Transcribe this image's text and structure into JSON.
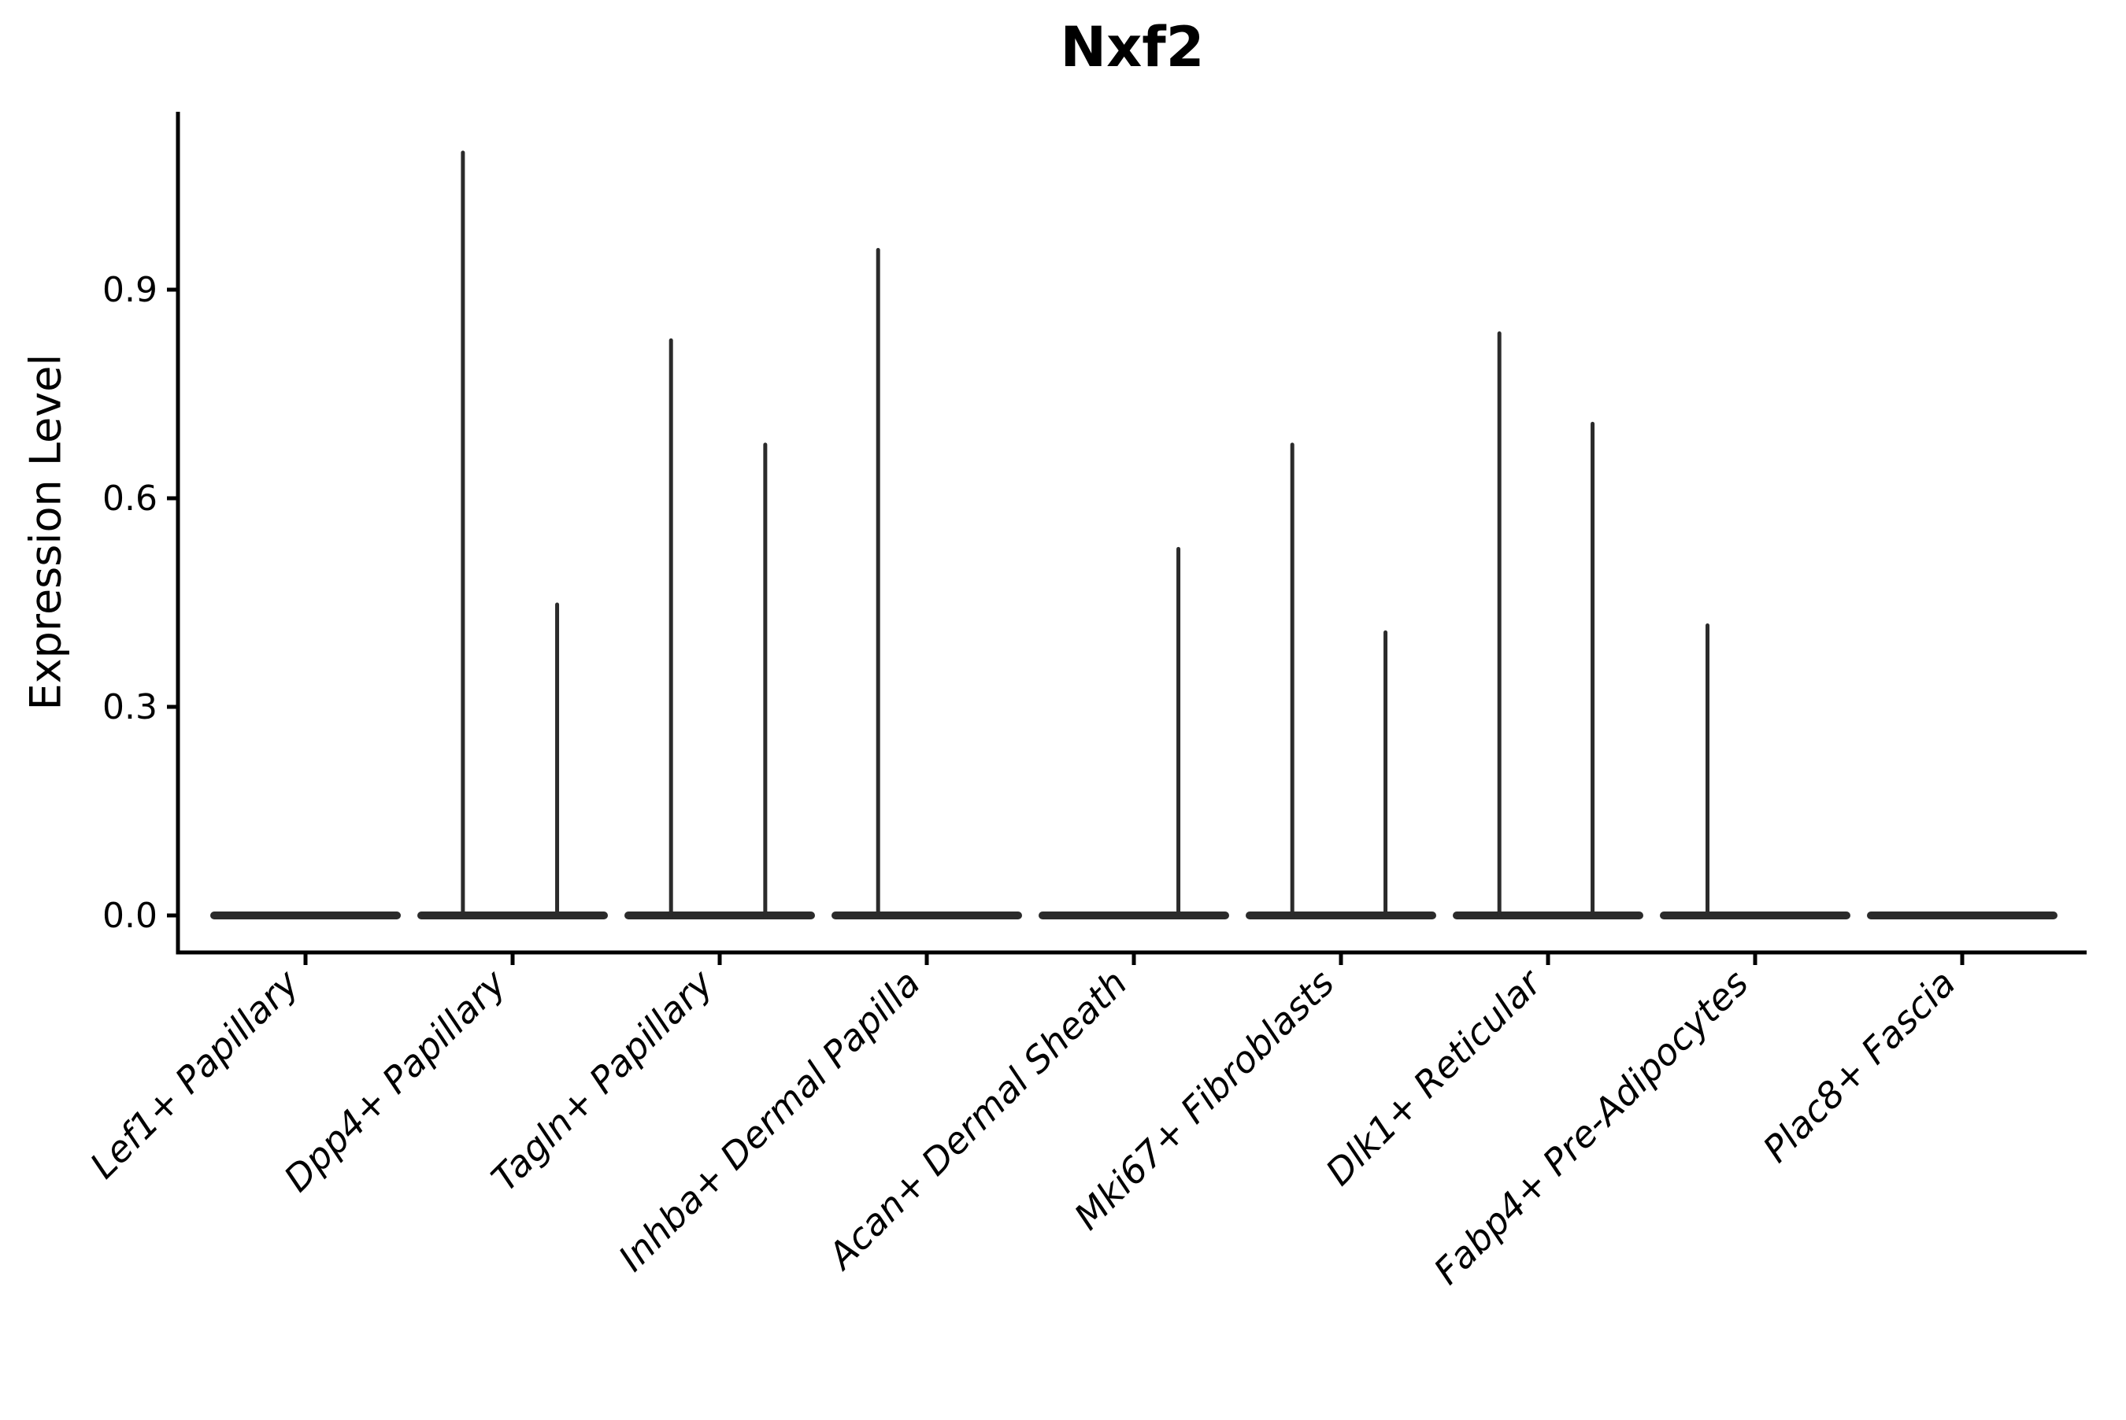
{
  "title": "Nxf2",
  "axes": {
    "y_label": "Expression Level"
  },
  "chart_data": {
    "type": "violin",
    "title": "Nxf2",
    "xlabel": "",
    "ylabel": "Expression Level",
    "ylim": [
      -0.053,
      1.156
    ],
    "y_ticks": [
      0,
      0.3,
      0.6,
      0.9
    ],
    "y_tick_labels": [
      "0.0",
      "0.3",
      "0.6",
      "0.9"
    ],
    "x_tick_rotation_deg": 45,
    "grid": false,
    "legend": false,
    "violin_color": "#2b2b2b",
    "axis_color": "#000000",
    "categories": [
      "Lef1+ Papillary",
      "Dpp4+ Papillary",
      "Tagln+ Papillary",
      "Inhba+ Dermal Papilla",
      "Acan+ Dermal Sheath",
      "Mki67+ Fibroblasts",
      "Dlk1+ Reticular",
      "Fabp4+ Pre-Adipocytes",
      "Plac8+ Fascia"
    ],
    "violins": [
      {
        "category": "Lef1+ Papillary",
        "baseline": 0,
        "spikes": []
      },
      {
        "category": "Dpp4+ Papillary",
        "baseline": 0,
        "spikes": [
          {
            "offset": -0.24,
            "max": 1.1
          },
          {
            "offset": 0.215,
            "max": 0.45
          }
        ]
      },
      {
        "category": "Tagln+ Papillary",
        "baseline": 0,
        "spikes": [
          {
            "offset": -0.235,
            "max": 0.83
          },
          {
            "offset": 0.22,
            "max": 0.68
          }
        ]
      },
      {
        "category": "Inhba+ Dermal Papilla",
        "baseline": 0,
        "spikes": [
          {
            "offset": -0.235,
            "max": 0.96
          }
        ]
      },
      {
        "category": "Acan+ Dermal Sheath",
        "baseline": 0,
        "spikes": [
          {
            "offset": 0.215,
            "max": 0.53
          }
        ]
      },
      {
        "category": "Mki67+ Fibroblasts",
        "baseline": 0,
        "spikes": [
          {
            "offset": -0.235,
            "max": 0.68
          },
          {
            "offset": 0.215,
            "max": 0.41
          }
        ]
      },
      {
        "category": "Dlk1+ Reticular",
        "baseline": 0,
        "spikes": [
          {
            "offset": -0.235,
            "max": 0.84
          },
          {
            "offset": 0.215,
            "max": 0.71
          }
        ]
      },
      {
        "category": "Fabp4+ Pre-Adipocytes",
        "baseline": 0,
        "spikes": [
          {
            "offset": -0.23,
            "max": 0.42
          }
        ]
      },
      {
        "category": "Plac8+ Fascia",
        "baseline": 0,
        "spikes": []
      }
    ]
  }
}
